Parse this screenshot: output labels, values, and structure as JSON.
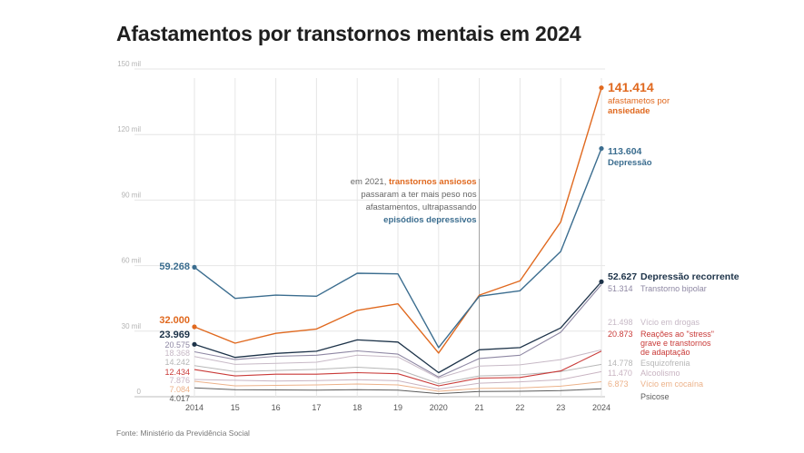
{
  "title": "Afastamentos por transtornos mentais em 2024",
  "source": "Fonte: Ministério da Previdência Social",
  "annotation": {
    "lead": "em 2021,",
    "emph1": "transtornos ansiosos",
    "line2": "passaram a ter mais peso nos",
    "line3": "afastamentos, ultrapassando",
    "emph2": "episódios depressivos"
  },
  "chart_data": {
    "type": "line",
    "title": "Afastamentos por transtornos mentais em 2024",
    "x": [
      "2014",
      "15",
      "16",
      "17",
      "18",
      "19",
      "2020",
      "21",
      "22",
      "23",
      "2024"
    ],
    "ylim": [
      0,
      150000
    ],
    "yticks": [
      0,
      30000,
      60000,
      90000,
      120000,
      150000
    ],
    "ytick_labels": [
      "0",
      "30 mil",
      "60 mil",
      "90 mil",
      "120 mil",
      "150 mil"
    ],
    "grid": "vertical",
    "series": [
      {
        "name": "Depressão",
        "label_end": "Depressão",
        "start_label": "59.268",
        "end_label": "113.604",
        "color": "#3b6d8f",
        "width": 1.4,
        "values": [
          59268,
          45000,
          46500,
          46000,
          56500,
          56200,
          22500,
          46000,
          48500,
          66500,
          113604
        ]
      },
      {
        "name": "afastametos por ansiedade",
        "label_end": "afastametos por",
        "label_end2": "ansiedade",
        "start_label": "32.000",
        "end_label": "141.414",
        "color": "#e0691f",
        "width": 1.4,
        "values": [
          32000,
          24500,
          29000,
          31000,
          39500,
          42500,
          20000,
          46500,
          53000,
          80000,
          141414
        ]
      },
      {
        "name": "Depressão recorrente",
        "label_end": "Depressão recorrente",
        "start_label": "23.969",
        "end_label": "52.627",
        "color": "#1d3349",
        "width": 1.3,
        "values": [
          23969,
          18000,
          19800,
          20800,
          26000,
          25000,
          11000,
          21500,
          22500,
          31500,
          52627
        ]
      },
      {
        "name": "Transtorno bipolar",
        "label_end": "Transtorno bipolar",
        "start_label": "20.575",
        "end_label": "51.314",
        "color": "#8e87a3",
        "width": 1.1,
        "values": [
          20575,
          17000,
          18500,
          19000,
          21000,
          19500,
          9000,
          17500,
          19000,
          29500,
          51314
        ]
      },
      {
        "name": "Vício em drogas",
        "label_end": "Vício em drogas",
        "start_label": "18.368",
        "end_label": "21.498",
        "color": "#c7b9c6",
        "width": 1.0,
        "values": [
          18368,
          14800,
          15300,
          15800,
          19000,
          18200,
          8500,
          14000,
          14600,
          17000,
          21498
        ]
      },
      {
        "name": "Reações ao \"stress\" grave e transtornos de adaptação",
        "label_end": "Reações ao \"stress\"",
        "label_end2": "grave e transtornos",
        "label_end3": "de adaptação",
        "start_label": "12.434",
        "end_label": "20.873",
        "color": "#c93a38",
        "width": 1.1,
        "values": [
          12434,
          9500,
          10300,
          10300,
          11000,
          10500,
          5000,
          8500,
          8800,
          11800,
          20873
        ]
      },
      {
        "name": "Esquizofrenia",
        "label_end": "Esquizofrenia",
        "start_label": "14.242",
        "end_label": "14.778",
        "color": "#b7b7b7",
        "width": 1.0,
        "values": [
          14242,
          11500,
          12000,
          12500,
          13500,
          12500,
          6000,
          9500,
          10000,
          11500,
          14778
        ]
      },
      {
        "name": "Alcoolismo",
        "label_end": "Alcoolismo",
        "start_label": "7.876",
        "end_label": "11.470",
        "color": "#c9b4c2",
        "width": 1.0,
        "values": [
          7876,
          7500,
          7200,
          7400,
          7800,
          7300,
          3500,
          6200,
          6800,
          7800,
          11470
        ]
      },
      {
        "name": "Vício em cocaína",
        "label_end": "Vício em cocaína",
        "start_label": "7.084",
        "end_label": "6.873",
        "color": "#ecb28a",
        "width": 1.0,
        "values": [
          7084,
          5000,
          5200,
          5400,
          5800,
          5400,
          2500,
          3800,
          4000,
          4800,
          6873
        ]
      },
      {
        "name": "Psicose",
        "label_end": "Psicose",
        "start_label": "4.017",
        "end_label": "",
        "color": "#5d5d5d",
        "width": 1.0,
        "values": [
          4017,
          3200,
          3100,
          3000,
          3200,
          3000,
          1400,
          2400,
          2500,
          2800,
          3600
        ]
      }
    ]
  }
}
